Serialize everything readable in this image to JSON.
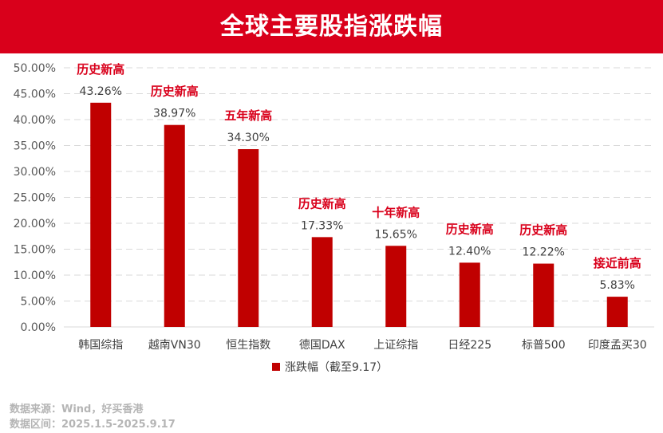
{
  "header": {
    "title": "全球主要股指涨跌幅"
  },
  "chart_data": {
    "type": "bar",
    "title": "全球主要股指涨跌幅",
    "categories": [
      "韩国综指",
      "越南VN30",
      "恒生指数",
      "德国DAX",
      "上证综指",
      "日经225",
      "标普500",
      "印度孟买30"
    ],
    "series": [
      {
        "name": "涨跌幅（截至9.17）",
        "values": [
          43.26,
          38.97,
          34.3,
          17.33,
          15.65,
          12.4,
          12.22,
          5.83
        ]
      }
    ],
    "value_labels": [
      "43.26%",
      "38.97%",
      "34.30%",
      "17.33%",
      "15.65%",
      "12.40%",
      "12.22%",
      "5.83%"
    ],
    "annotations": [
      "历史新高",
      "历史新高",
      "五年新高",
      "历史新高",
      "十年新高",
      "历史新高",
      "历史新高",
      "接近前高"
    ],
    "y_ticks": [
      "0.00%",
      "5.00%",
      "10.00%",
      "15.00%",
      "20.00%",
      "25.00%",
      "30.00%",
      "35.00%",
      "40.00%",
      "45.00%",
      "50.00%"
    ],
    "ylim": [
      0,
      50
    ],
    "grid": true,
    "legend_position": "bottom",
    "bar_color": "#c00000",
    "annotation_color": "#d9001b"
  },
  "footer": {
    "source": "数据来源：Wind，好买香港",
    "period": "数据区间：2025.1.5-2025.9.17"
  }
}
